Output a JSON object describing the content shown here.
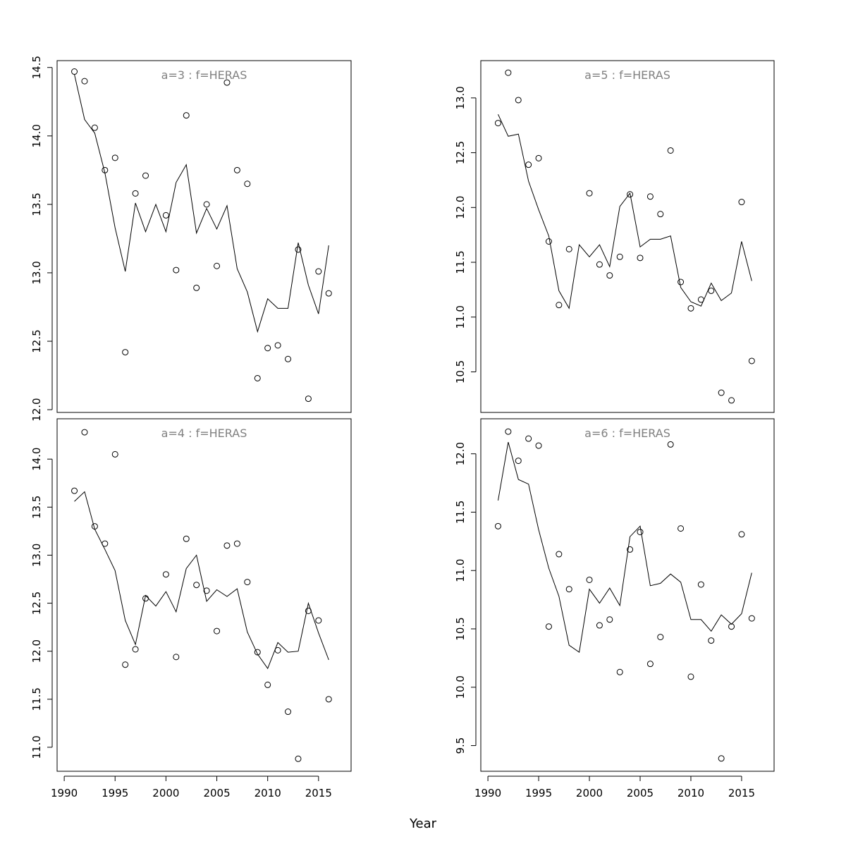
{
  "figure": {
    "xlabel": "Year",
    "title_color": "#808080",
    "line_color": "#000000",
    "point_color": "#000000"
  },
  "chart_data": [
    {
      "type": "scatter",
      "title": "a=3  :  f=HERAS",
      "xlabel": "Year",
      "ylabel": "",
      "xlim": [
        1989.3,
        2018.2
      ],
      "ylim": [
        11.98,
        14.55
      ],
      "xticks": [
        1990,
        1995,
        2000,
        2005,
        2010,
        2015
      ],
      "yticks": [
        12.0,
        12.5,
        13.0,
        13.5,
        14.0,
        14.5
      ],
      "ytick_labels": [
        "12.0",
        "12.5",
        "13.0",
        "13.5",
        "14.0",
        "14.5"
      ],
      "series": [
        {
          "kind": "points",
          "x": [
            1991,
            1992,
            1993,
            1994,
            1995,
            1996,
            1997,
            1998,
            2000,
            2001,
            2002,
            2003,
            2004,
            2005,
            2006,
            2007,
            2008,
            2009,
            2010,
            2011,
            2012,
            2013,
            2014,
            2015,
            2016
          ],
          "y": [
            14.47,
            14.4,
            14.06,
            13.75,
            13.84,
            12.42,
            13.58,
            13.71,
            13.42,
            13.02,
            14.15,
            12.89,
            13.5,
            13.05,
            14.39,
            13.75,
            13.65,
            12.23,
            12.45,
            12.47,
            12.37,
            13.17,
            12.08,
            13.01,
            12.85
          ]
        },
        {
          "kind": "line",
          "x": [
            1991,
            1992,
            1993,
            1994,
            1995,
            1996,
            1997,
            1998,
            1999,
            2000,
            2001,
            2002,
            2003,
            2004,
            2005,
            2006,
            2007,
            2008,
            2009,
            2010,
            2011,
            2012,
            2013,
            2014,
            2015,
            2016
          ],
          "y": [
            14.45,
            14.12,
            14.02,
            13.73,
            13.33,
            13.01,
            13.51,
            13.3,
            13.5,
            13.3,
            13.66,
            13.79,
            13.29,
            13.47,
            13.32,
            13.49,
            13.03,
            12.86,
            12.57,
            12.81,
            12.74,
            12.74,
            13.22,
            12.91,
            12.7,
            13.2
          ]
        }
      ]
    },
    {
      "type": "scatter",
      "title": "a=5  :  f=HERAS",
      "xlabel": "Year",
      "ylabel": "",
      "xlim": [
        1989.3,
        2018.2
      ],
      "ylim": [
        10.13,
        13.34
      ],
      "xticks": [
        1990,
        1995,
        2000,
        2005,
        2010,
        2015
      ],
      "yticks": [
        10.5,
        11.0,
        11.5,
        12.0,
        12.5,
        13.0
      ],
      "ytick_labels": [
        "10.5",
        "11.0",
        "11.5",
        "12.0",
        "12.5",
        "13.0"
      ],
      "series": [
        {
          "kind": "points",
          "x": [
            1991,
            1992,
            1993,
            1994,
            1995,
            1996,
            1997,
            1998,
            2000,
            2001,
            2002,
            2003,
            2004,
            2005,
            2006,
            2007,
            2008,
            2009,
            2010,
            2011,
            2012,
            2013,
            2014,
            2015,
            2016
          ],
          "y": [
            12.77,
            13.23,
            12.98,
            12.39,
            12.45,
            11.69,
            11.11,
            11.62,
            12.13,
            11.48,
            11.38,
            11.55,
            12.12,
            11.54,
            12.1,
            11.94,
            12.52,
            11.32,
            11.08,
            11.16,
            11.24,
            10.31,
            10.24,
            12.05,
            10.6
          ]
        },
        {
          "kind": "line",
          "x": [
            1991,
            1992,
            1993,
            1994,
            1995,
            1996,
            1997,
            1998,
            1999,
            2000,
            2001,
            2002,
            2003,
            2004,
            2005,
            2006,
            2007,
            2008,
            2009,
            2010,
            2011,
            2012,
            2013,
            2014,
            2015,
            2016
          ],
          "y": [
            12.85,
            12.65,
            12.67,
            12.24,
            11.98,
            11.74,
            11.24,
            11.08,
            11.66,
            11.55,
            11.66,
            11.46,
            12.01,
            12.13,
            11.64,
            11.71,
            11.71,
            11.74,
            11.27,
            11.14,
            11.1,
            11.31,
            11.15,
            11.22,
            11.69,
            11.33
          ]
        }
      ]
    },
    {
      "type": "scatter",
      "title": "a=4  :  f=HERAS",
      "xlabel": "Year",
      "ylabel": "",
      "xlim": [
        1989.3,
        2018.2
      ],
      "ylim": [
        10.75,
        14.42
      ],
      "xticks": [
        1990,
        1995,
        2000,
        2005,
        2010,
        2015
      ],
      "yticks": [
        11.0,
        11.5,
        12.0,
        12.5,
        13.0,
        13.5,
        14.0
      ],
      "ytick_labels": [
        "11.0",
        "11.5",
        "12.0",
        "12.5",
        "13.0",
        "13.5",
        "14.0"
      ],
      "series": [
        {
          "kind": "points",
          "x": [
            1991,
            1992,
            1993,
            1994,
            1995,
            1996,
            1997,
            1998,
            2000,
            2001,
            2002,
            2003,
            2004,
            2005,
            2006,
            2007,
            2008,
            2009,
            2010,
            2011,
            2012,
            2013,
            2014,
            2015,
            2016
          ],
          "y": [
            13.67,
            14.28,
            13.3,
            13.12,
            14.05,
            11.86,
            12.02,
            12.55,
            12.8,
            11.94,
            13.17,
            12.69,
            12.63,
            12.21,
            13.1,
            13.12,
            12.72,
            11.99,
            11.65,
            12.01,
            11.37,
            10.88,
            12.42,
            12.32,
            11.5
          ]
        },
        {
          "kind": "line",
          "x": [
            1991,
            1992,
            1993,
            1994,
            1995,
            1996,
            1997,
            1998,
            1999,
            2000,
            2001,
            2002,
            2003,
            2004,
            2005,
            2006,
            2007,
            2008,
            2009,
            2010,
            2011,
            2012,
            2013,
            2014,
            2015,
            2016
          ],
          "y": [
            13.56,
            13.66,
            13.27,
            13.06,
            12.84,
            12.32,
            12.07,
            12.58,
            12.47,
            12.62,
            12.41,
            12.86,
            13.0,
            12.52,
            12.64,
            12.57,
            12.65,
            12.2,
            11.97,
            11.82,
            12.09,
            11.99,
            12.0,
            12.5,
            12.19,
            11.91
          ]
        }
      ]
    },
    {
      "type": "scatter",
      "title": "a=6  :  f=HERAS",
      "xlabel": "Year",
      "ylabel": "",
      "xlim": [
        1989.3,
        2018.2
      ],
      "ylim": [
        9.28,
        12.3
      ],
      "xticks": [
        1990,
        1995,
        2000,
        2005,
        2010,
        2015
      ],
      "yticks": [
        9.5,
        10.0,
        10.5,
        11.0,
        11.5,
        12.0
      ],
      "ytick_labels": [
        "9.5",
        "10.0",
        "10.5",
        "11.0",
        "11.5",
        "12.0"
      ],
      "series": [
        {
          "kind": "points",
          "x": [
            1991,
            1992,
            1993,
            1994,
            1995,
            1996,
            1997,
            1998,
            2000,
            2001,
            2002,
            2003,
            2004,
            2005,
            2006,
            2007,
            2008,
            2009,
            2010,
            2011,
            2012,
            2013,
            2014,
            2015,
            2016
          ],
          "y": [
            11.38,
            12.19,
            11.94,
            12.13,
            12.07,
            10.52,
            11.14,
            10.84,
            10.92,
            10.53,
            10.58,
            10.13,
            11.18,
            11.33,
            10.2,
            10.43,
            12.08,
            11.36,
            10.09,
            10.88,
            10.4,
            9.39,
            10.52,
            11.31,
            10.59
          ]
        },
        {
          "kind": "line",
          "x": [
            1991,
            1992,
            1993,
            1994,
            1995,
            1996,
            1997,
            1998,
            1999,
            2000,
            2001,
            2002,
            2003,
            2004,
            2005,
            2006,
            2007,
            2008,
            2009,
            2010,
            2011,
            2012,
            2013,
            2014,
            2015,
            2016
          ],
          "y": [
            11.6,
            12.1,
            11.78,
            11.74,
            11.35,
            11.02,
            10.78,
            10.36,
            10.3,
            10.84,
            10.72,
            10.85,
            10.7,
            11.29,
            11.38,
            10.87,
            10.89,
            10.97,
            10.9,
            10.58,
            10.58,
            10.48,
            10.62,
            10.54,
            10.63,
            10.98
          ]
        }
      ]
    }
  ]
}
